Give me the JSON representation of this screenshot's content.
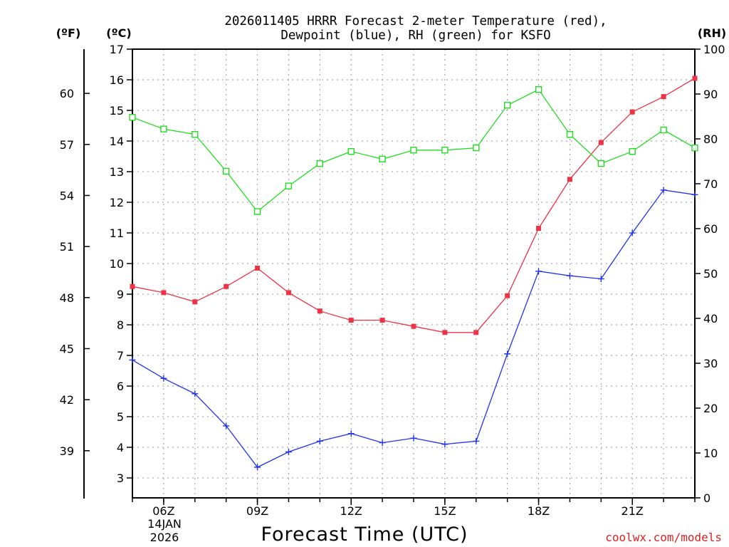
{
  "chart_data": {
    "type": "line",
    "title_line1": "2026011405 HRRR Forecast 2-meter Temperature (red),",
    "title_line2": "Dewpoint (blue), RH (green) for KSFO",
    "xlabel": "Forecast Time (UTC)",
    "left_axis_unit": "(ºC)",
    "far_left_axis_unit": "(ºF)",
    "right_axis_unit": "(RH)",
    "credit": "coolwx.com/models",
    "date_label_line1": "14JAN",
    "date_label_line2": "2026",
    "x_hours": [
      5,
      6,
      7,
      8,
      9,
      10,
      11,
      12,
      13,
      14,
      15,
      16,
      17,
      18,
      19,
      20,
      21,
      22,
      23
    ],
    "xlim": [
      5,
      23
    ],
    "x_ticks": [
      {
        "hour": 6,
        "label": "06Z"
      },
      {
        "hour": 9,
        "label": "09Z"
      },
      {
        "hour": 12,
        "label": "12Z"
      },
      {
        "hour": 15,
        "label": "15Z"
      },
      {
        "hour": 18,
        "label": "18Z"
      },
      {
        "hour": 21,
        "label": "21Z"
      }
    ],
    "ylim_c": [
      2.35,
      17
    ],
    "y_ticks_c": [
      "3",
      "4",
      "5",
      "6",
      "7",
      "8",
      "9",
      "10",
      "11",
      "12",
      "13",
      "14",
      "15",
      "16",
      "17"
    ],
    "y_ticks_f": [
      "39",
      "42",
      "45",
      "48",
      "51",
      "54",
      "57",
      "60"
    ],
    "ylim_rh": [
      0,
      100
    ],
    "y_ticks_rh": [
      "0",
      "10",
      "20",
      "30",
      "40",
      "50",
      "60",
      "70",
      "80",
      "90",
      "100"
    ],
    "series": [
      {
        "name": "Temperature",
        "color": "#ee3344",
        "marker": "filled-square",
        "axis": "C",
        "values": [
          9.25,
          9.05,
          8.75,
          9.25,
          9.85,
          9.05,
          8.45,
          8.15,
          8.15,
          7.95,
          7.75,
          7.75,
          8.95,
          11.15,
          12.75,
          13.95,
          14.95,
          15.45,
          16.05
        ]
      },
      {
        "name": "Dewpoint",
        "color": "#2233ee",
        "marker": "plus",
        "axis": "C",
        "values": [
          6.85,
          6.25,
          5.75,
          4.7,
          3.35,
          3.85,
          4.2,
          4.45,
          4.15,
          4.3,
          4.1,
          4.2,
          7.05,
          9.75,
          9.6,
          9.5,
          11.0,
          12.4,
          12.25
        ]
      },
      {
        "name": "RH",
        "color": "#22dd22",
        "marker": "open-square",
        "axis": "RH",
        "values": [
          84.8,
          82.2,
          81.0,
          72.8,
          63.8,
          69.5,
          74.5,
          77.2,
          75.5,
          77.5,
          77.5,
          78.0,
          87.5,
          91.0,
          81.0,
          74.5,
          77.2,
          82.0,
          78.0
        ]
      }
    ]
  }
}
